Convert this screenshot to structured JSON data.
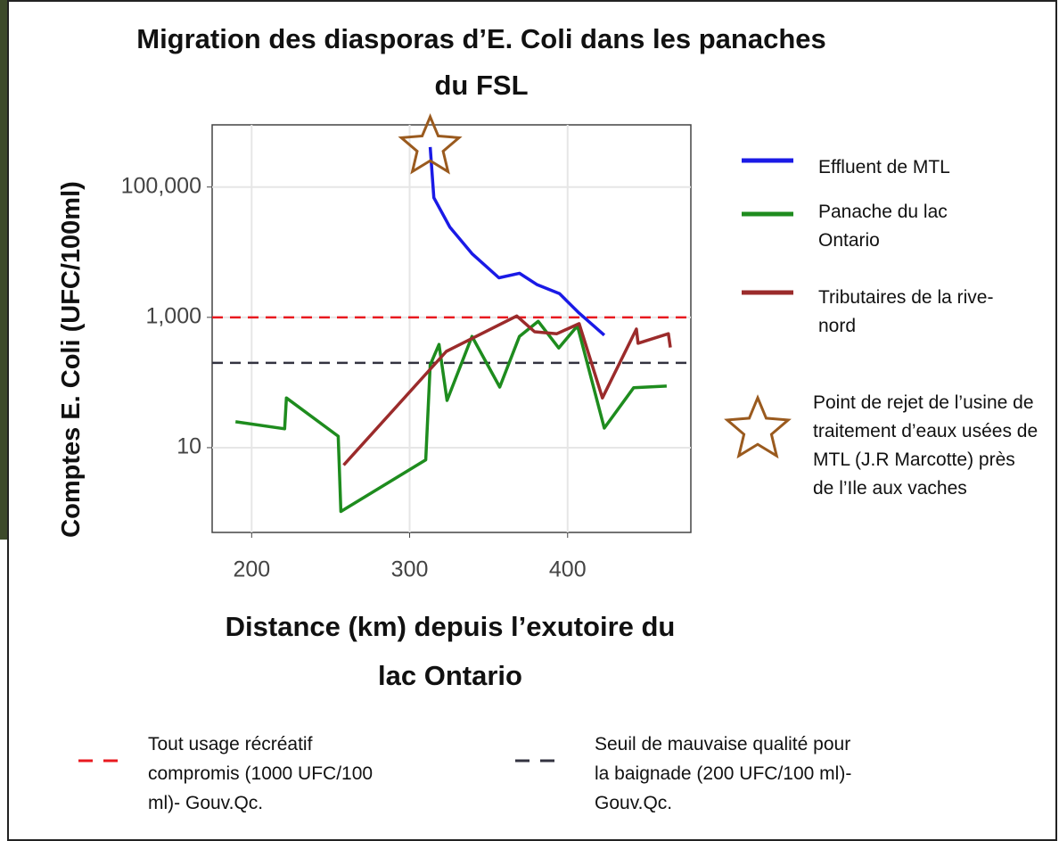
{
  "chart_data": {
    "type": "line",
    "title": "Migration des diasporas d’E. Coli dans les panaches du FSL",
    "xlabel": "Distance (km) depuis l’exutoire du lac Ontario",
    "ylabel": "Comptes E. Coli (UFC/100ml)",
    "xlim": [
      175,
      478
    ],
    "ylim": [
      0.5,
      900000
    ],
    "xticks": [
      200,
      300,
      400
    ],
    "yticks": [
      10,
      {
        "value": 1000,
        "label": "1,000"
      },
      {
        "value": 100000,
        "label": "100,000"
      }
    ],
    "log_y": true,
    "grid": true,
    "series": [
      {
        "name": "Effluent de MTL",
        "color": "#1a1ae6",
        "x": [
          313,
          315.3,
          325.4,
          339.5,
          356.5,
          369.5,
          380.8,
          394.9,
          407.3,
          423.2
        ],
        "values": [
          411000,
          68500,
          24300,
          9500,
          4050,
          4750,
          3160,
          2310,
          1160,
          533
        ]
      },
      {
        "name": "Panache du lac Ontario",
        "color": "#1e8c1e",
        "x": [
          189.8,
          220.9,
          222,
          254.8,
          256.5,
          310.2,
          313,
          318.6,
          323.7,
          339.5,
          357,
          369.5,
          381.4,
          394.4,
          406.2,
          423.2,
          441.8,
          462.7
        ],
        "values": [
          25,
          19.5,
          58,
          15,
          1.05,
          6.5,
          186,
          384,
          53,
          510,
          85,
          510,
          870,
          339,
          740,
          20,
          83,
          88
        ]
      },
      {
        "name": "Tributaires de la rive-nord",
        "color": "#9b2b2b",
        "x": [
          258.2,
          323.2,
          367.8,
          379.1,
          393.2,
          407.3,
          422,
          443.5,
          444.6,
          463.8,
          465
        ],
        "values": [
          5.4,
          300,
          1050,
          600,
          560,
          800,
          58,
          660,
          400,
          560,
          345
        ]
      }
    ],
    "hlines": [
      {
        "value": 1000,
        "color": "#e8191f",
        "label": "Tout usage récréatif compromis (1000 UFC/100 ml)- Gouv.Qc."
      },
      {
        "value": 200,
        "color": "#333340",
        "label": "Seuil de mauvaise qualité pour la baignade (200 UFC/100 ml)- Gouv.Qc."
      }
    ],
    "annotation": {
      "label": "Point de rejet de l’usine de traitement d’eaux usées de MTL (J.R Marcotte) près de l’Ile aux vaches",
      "color": "#9a5a1e"
    }
  }
}
